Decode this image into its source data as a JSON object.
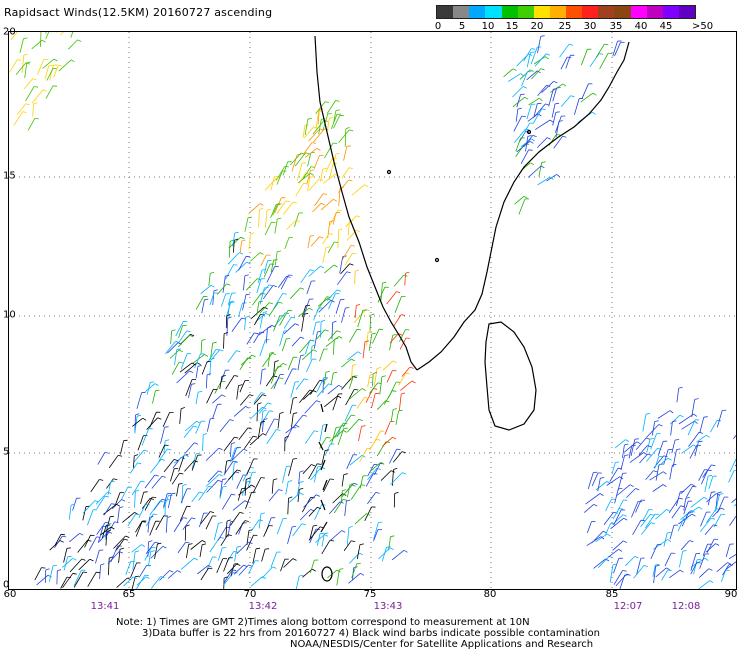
{
  "title": "Rapidsact Winds(12.5KM) 20160727 ascending",
  "scale": {
    "colors": [
      "#3a3a3a",
      "#888888",
      "#00a8ff",
      "#00e0ff",
      "#00c000",
      "#40d000",
      "#ffe000",
      "#ffb000",
      "#ff5000",
      "#ff2020",
      "#a04020",
      "#8b4513",
      "#ff00ff",
      "#c000c0",
      "#8000ff",
      "#6000c0"
    ],
    "ticks": [
      "0",
      "5",
      "10",
      "15",
      "20",
      "25",
      "30",
      "35",
      "40",
      "45",
      ">50 knots"
    ]
  },
  "axes": {
    "lon_labels": [
      "60",
      "65",
      "70",
      "75",
      "80",
      "85",
      "90"
    ],
    "lat_labels": [
      "20",
      "15",
      "10",
      "5",
      "0"
    ]
  },
  "times": [
    "13:41",
    "13:42",
    "13:43",
    "12:07",
    "12:08"
  ],
  "notes": {
    "line1": "Note: 1) Times are GMT 2)Times along bottom correspond to measurement at 10N",
    "line2": "3)Data buffer is 22 hrs from 20160727 4) Black wind barbs indicate possible contamination",
    "line3": "NOAA/NESDIS/Center for Satellite Applications and Research"
  }
}
